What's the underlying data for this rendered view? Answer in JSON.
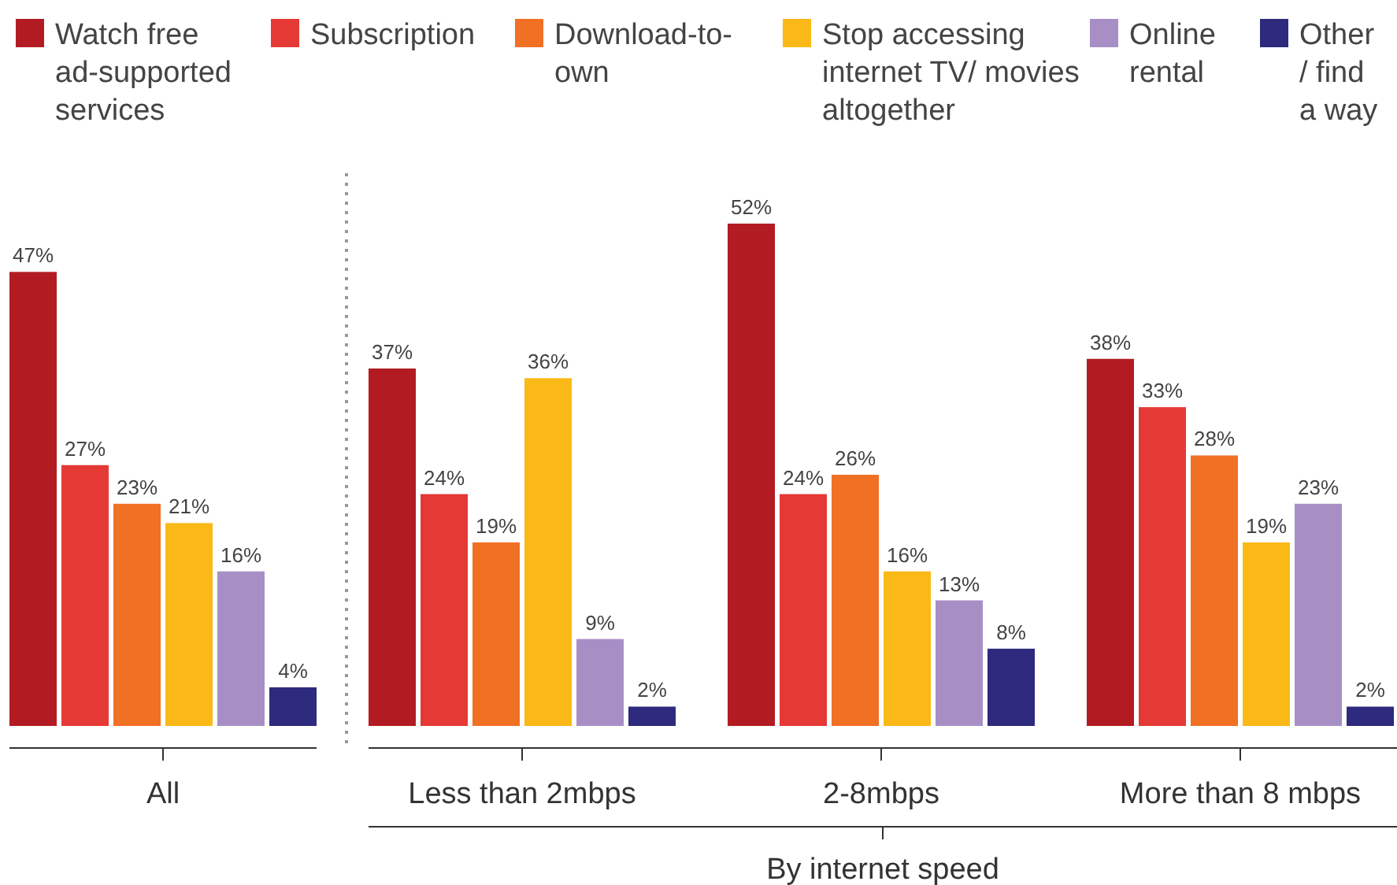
{
  "chart_data": {
    "type": "bar",
    "categories": [
      "All",
      "Less than 2mbps",
      "2-8mbps",
      "More than 8 mbps"
    ],
    "series": [
      {
        "name": "Watch free ad-supported services",
        "color": "#b31b23",
        "values": [
          47,
          37,
          52,
          38
        ],
        "value_labels": [
          "47%",
          "37%",
          "52%",
          "38%"
        ]
      },
      {
        "name": "Subscription",
        "color": "#e53935",
        "values": [
          27,
          24,
          24,
          33
        ],
        "value_labels": [
          "27%",
          "24%",
          "24%",
          "33%"
        ]
      },
      {
        "name": "Download-to-own",
        "color": "#f07024",
        "values": [
          23,
          19,
          26,
          28
        ],
        "value_labels": [
          "23%",
          "19%",
          "26%",
          "28%"
        ]
      },
      {
        "name": "Stop accessing internet TV/ movies altogether",
        "color": "#fbb917",
        "values": [
          21,
          36,
          16,
          19
        ],
        "value_labels": [
          "21%",
          "36%",
          "16%",
          "19%"
        ]
      },
      {
        "name": "Online rental",
        "color": "#a78fc6",
        "values": [
          16,
          9,
          13,
          23
        ],
        "value_labels": [
          "16%",
          "9%",
          "13%",
          "23%"
        ]
      },
      {
        "name": "Other / find a way",
        "color": "#2e2a7e",
        "values": [
          4,
          2,
          8,
          2
        ],
        "value_labels": [
          "4%",
          "2%",
          "8%",
          "2%"
        ]
      }
    ],
    "legend": "top",
    "annotations": [
      "By internet speed"
    ]
  }
}
